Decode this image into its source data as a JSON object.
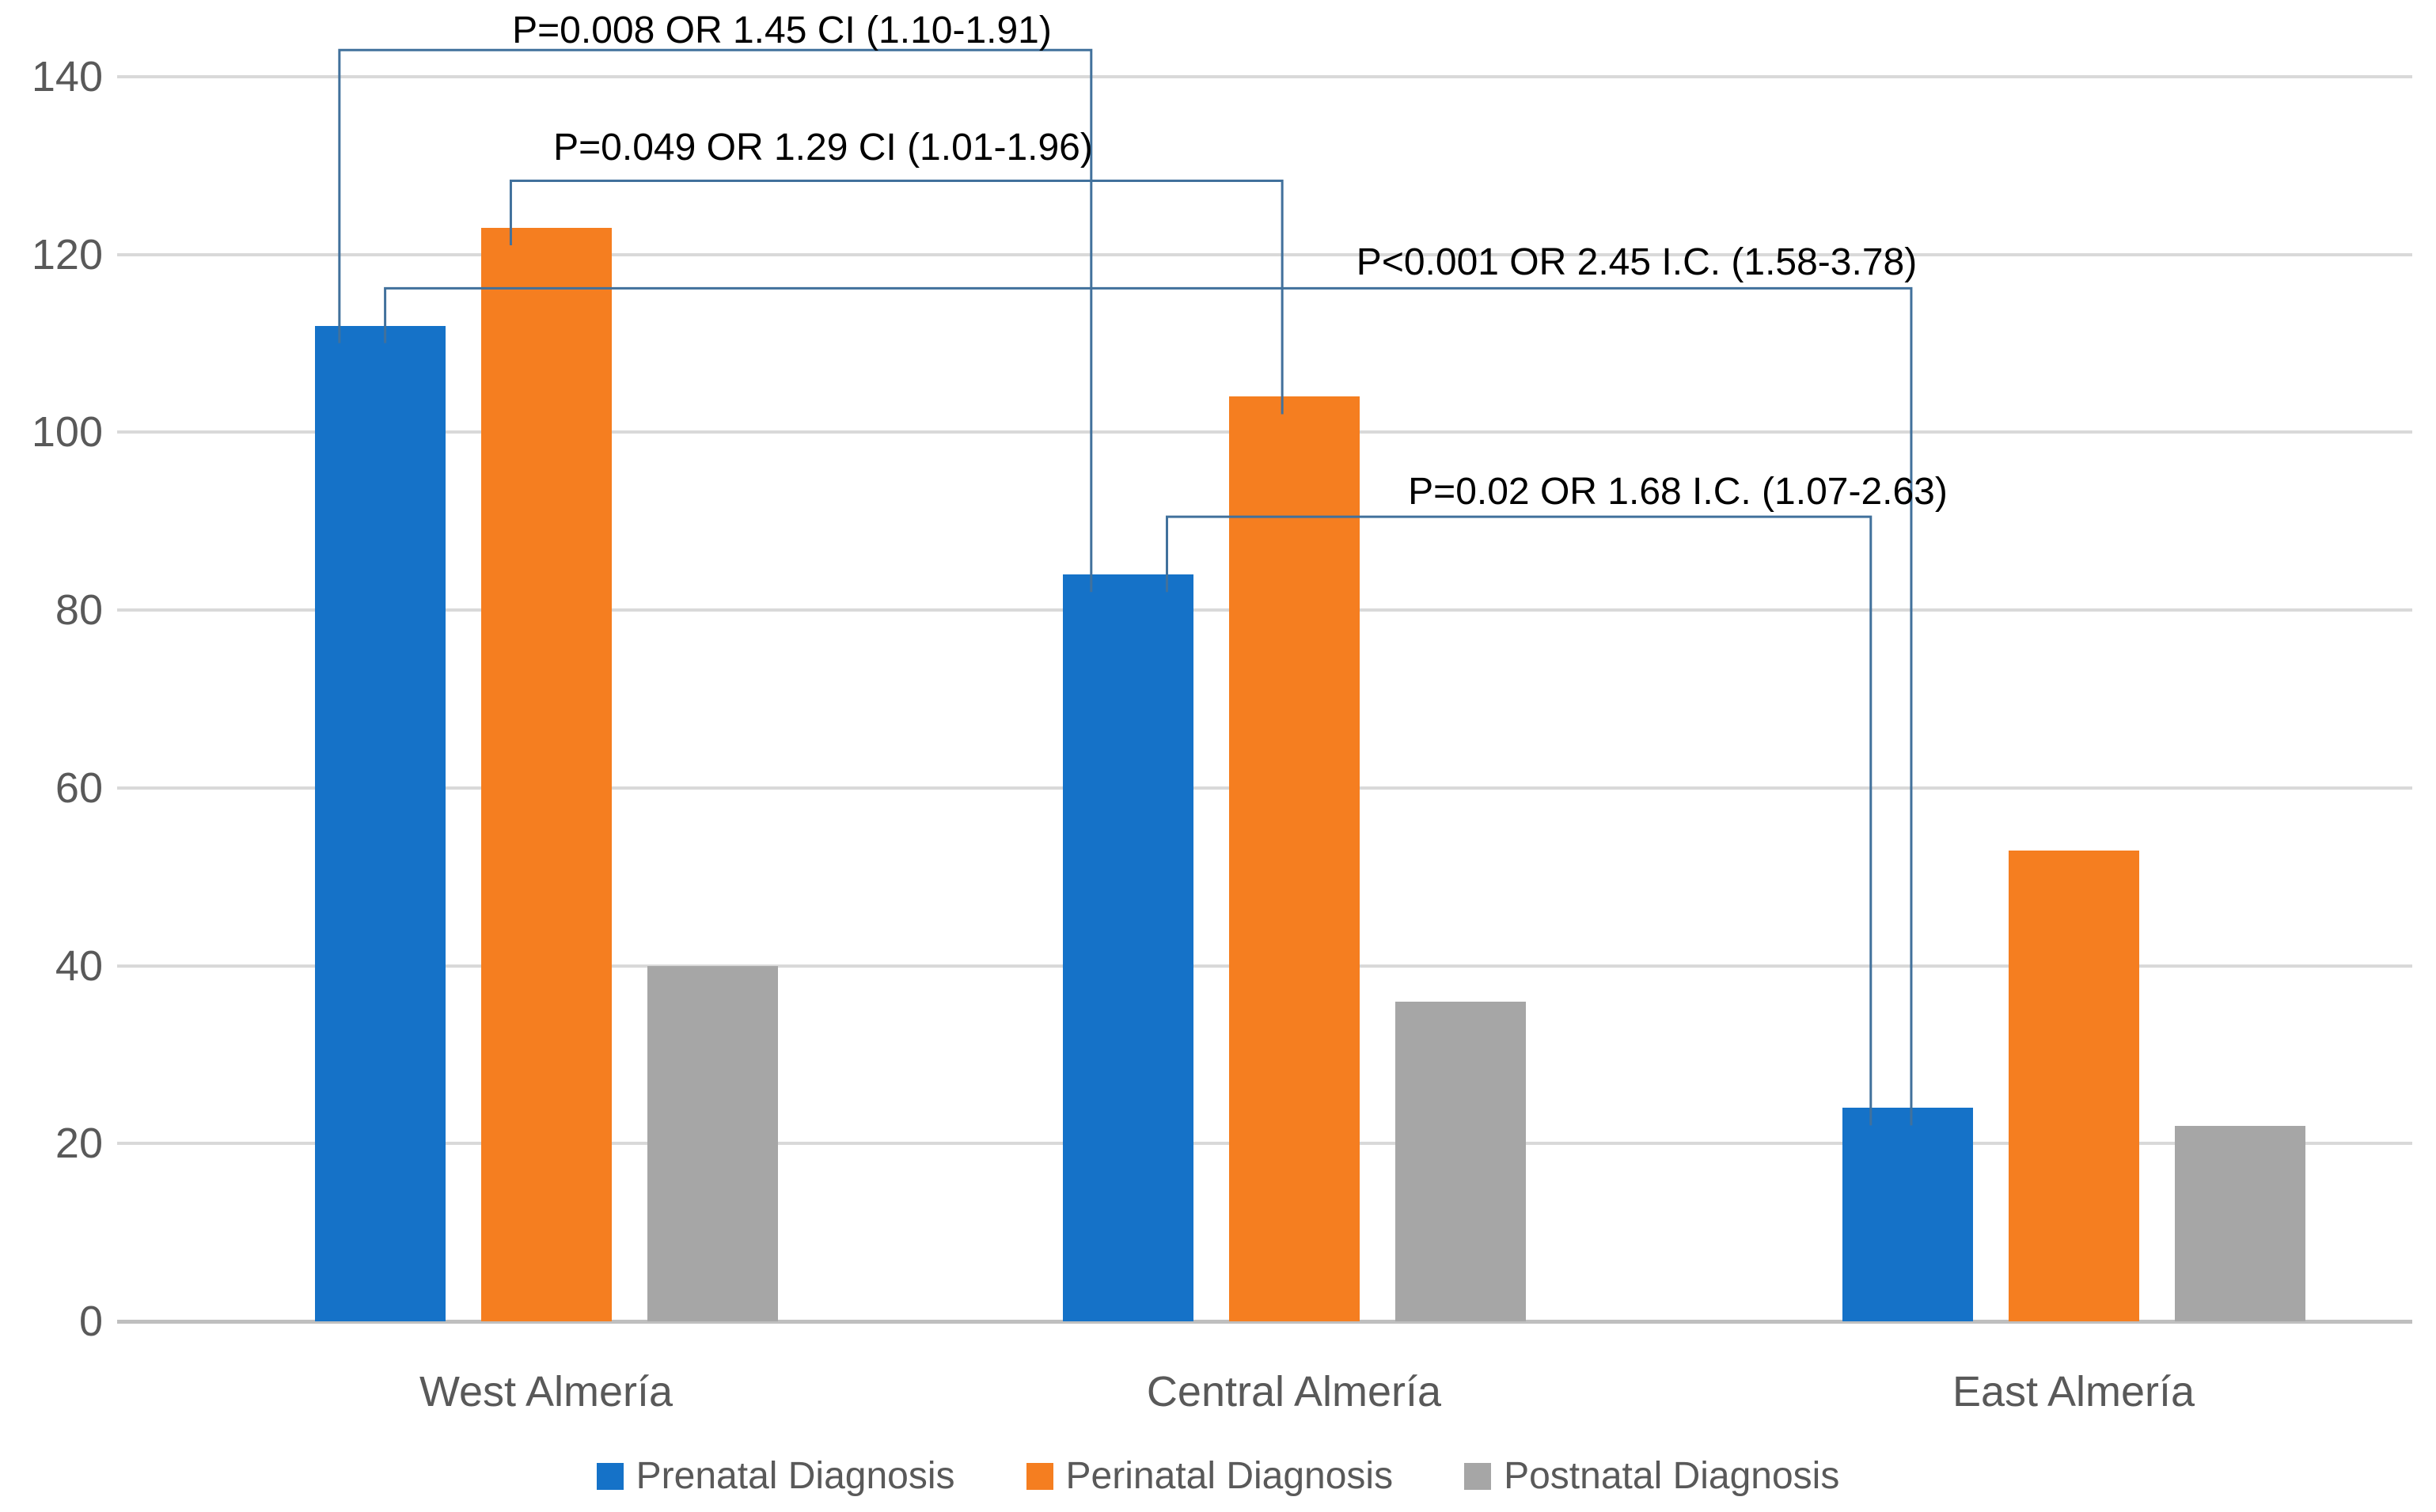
{
  "chart_data": {
    "type": "bar",
    "title": "",
    "xlabel": "",
    "ylabel": "",
    "categories": [
      "West Almería",
      "Central Almería",
      "East Almería"
    ],
    "series": [
      {
        "name": "Prenatal Diagnosis",
        "color": "#1572C8",
        "values": [
          112,
          84,
          24
        ]
      },
      {
        "name": "Perinatal Diagnosis",
        "color": "#F57E20",
        "values": [
          123,
          104,
          53
        ]
      },
      {
        "name": "Postnatal Diagnosis",
        "color": "#A6A6A6",
        "values": [
          40,
          36,
          22
        ]
      }
    ],
    "ylim": [
      0,
      140
    ],
    "yticks": [
      0,
      20,
      40,
      60,
      80,
      100,
      120,
      140
    ],
    "grid": "horizontal",
    "legend_position": "bottom",
    "annotations": [
      {
        "text": "P=0.008 OR 1.45 CI (1.10-1.91)",
        "from": {
          "category": 0,
          "series": 0
        },
        "to": {
          "category": 1,
          "series": 0
        },
        "bracket_level": 143.0
      },
      {
        "text": "P=0.049 OR 1.29 CI (1.01-1.96)",
        "from": {
          "category": 0,
          "series": 1
        },
        "to": {
          "category": 1,
          "series": 1
        },
        "bracket_level": 128.3
      },
      {
        "text": "P<0.001 OR 2.45 I.C. (1.58-3.78)",
        "from": {
          "category": 0,
          "series": 0
        },
        "to": {
          "category": 2,
          "series": 0
        },
        "bracket_level": 116.2
      },
      {
        "text": "P=0.02 OR 1.68 I.C. (1.07-2.63)",
        "from": {
          "category": 1,
          "series": 0
        },
        "to": {
          "category": 2,
          "series": 0
        },
        "bracket_level": 90.5
      }
    ],
    "colors": {
      "gridline": "#D9D9D9",
      "axis_line": "#BFBFBF",
      "axis_text": "#595959",
      "annotation_line": "#41719C",
      "annotation_text": "#000000"
    }
  }
}
